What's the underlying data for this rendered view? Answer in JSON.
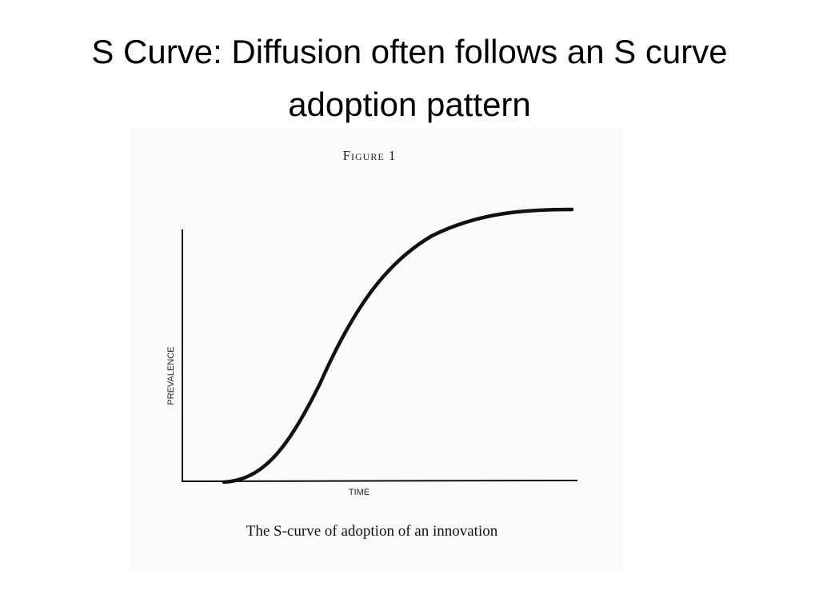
{
  "slide": {
    "title": "S Curve: Diffusion often follows an S curve adoption pattern"
  },
  "figure": {
    "label": "Figure 1",
    "y_axis_label": "PREVALENCE",
    "x_axis_label": "TIME",
    "caption": "The S-curve of adoption of an innovation"
  }
}
